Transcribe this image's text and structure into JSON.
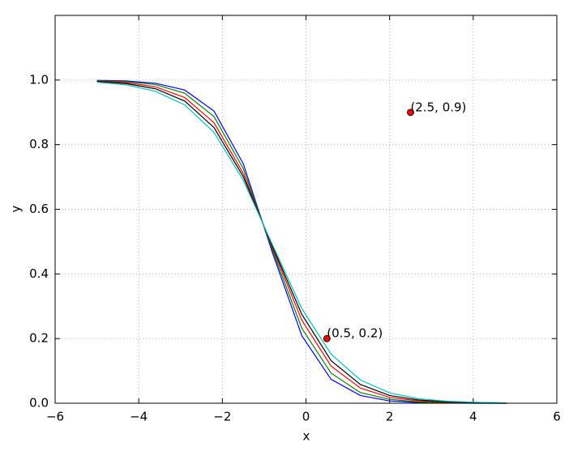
{
  "chart_data": {
    "type": "line",
    "x_label": "x",
    "y_label": "y",
    "x": [
      -5,
      -4.3,
      -3.6,
      -2.9,
      -2.2,
      -1.5,
      -0.8,
      -0.1,
      0.6,
      1.3,
      2.0,
      2.7,
      3.4,
      4.1,
      4.8
    ],
    "series": [
      {
        "color": "#0000ff",
        "values": [
          0.999,
          0.997,
          0.99,
          0.969,
          0.904,
          0.741,
          0.465,
          0.209,
          0.074,
          0.024,
          0.007,
          0.002,
          0.001,
          0.0,
          0.0
        ]
      },
      {
        "color": "#008000",
        "values": [
          0.998,
          0.995,
          0.986,
          0.959,
          0.887,
          0.726,
          0.473,
          0.232,
          0.093,
          0.033,
          0.012,
          0.004,
          0.001,
          0.0,
          0.0
        ]
      },
      {
        "color": "#ff0000",
        "values": [
          0.997,
          0.992,
          0.979,
          0.946,
          0.868,
          0.711,
          0.48,
          0.257,
          0.115,
          0.047,
          0.018,
          0.007,
          0.003,
          0.001,
          0.0
        ]
      },
      {
        "color": "#000000",
        "values": [
          0.996,
          0.989,
          0.973,
          0.935,
          0.853,
          0.701,
          0.485,
          0.275,
          0.132,
          0.058,
          0.024,
          0.01,
          0.004,
          0.002,
          0.001
        ]
      },
      {
        "color": "#00bfbf",
        "values": [
          0.993,
          0.985,
          0.965,
          0.923,
          0.838,
          0.69,
          0.49,
          0.293,
          0.152,
          0.072,
          0.032,
          0.014,
          0.006,
          0.003,
          0.001
        ]
      }
    ],
    "points": {
      "color": "#ff0000",
      "x": [
        0.5,
        2.5
      ],
      "y": [
        0.2,
        0.9
      ],
      "labels": [
        "(0.5, 0.2)",
        "(2.5, 0.9)"
      ]
    },
    "xlim": [
      -6,
      6
    ],
    "ylim": [
      0,
      1.2
    ],
    "xticks": [
      {
        "value": -6,
        "label": "−6"
      },
      {
        "value": -4,
        "label": "−4"
      },
      {
        "value": -2,
        "label": "−2"
      },
      0,
      2,
      4,
      6
    ],
    "yticks": [
      {
        "value": 0,
        "label": "0.0"
      },
      {
        "value": 0.2,
        "label": "0.2"
      },
      {
        "value": 0.4,
        "label": "0.4"
      },
      {
        "value": 0.6,
        "label": "0.6"
      },
      {
        "value": 0.8,
        "label": "0.8"
      },
      {
        "value": 1.0,
        "label": "1.0"
      }
    ],
    "grid": true
  }
}
